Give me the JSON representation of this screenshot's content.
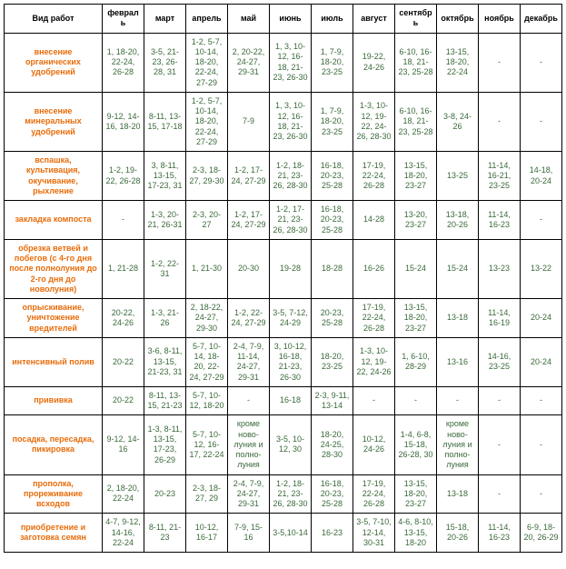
{
  "headers": {
    "work": "Вид работ",
    "months": [
      "февраль",
      "март",
      "апрель",
      "май",
      "июнь",
      "июль",
      "август",
      "сентябрь",
      "октябрь",
      "ноябрь",
      "декабрь"
    ]
  },
  "rows": [
    {
      "label": "внесение органических удобрений",
      "cells": [
        "1, 18-20, 22-24, 26-28",
        "3-5, 21-23, 26-28, 31",
        "1-2, 5-7, 10-14, 18-20, 22-24, 27-29",
        "2, 20-22, 24-27, 29-31",
        "1, 3, 10-12, 16-18, 21-23, 26-30",
        "1, 7-9, 18-20, 23-25",
        "19-22, 24-26",
        "6-10, 16-18, 21-23, 25-28",
        "13-15, 18-20, 22-24",
        "-",
        "-"
      ]
    },
    {
      "label": "внесение минеральных удобрений",
      "cells": [
        "9-12, 14-16, 18-20",
        "8-11, 13-15, 17-18",
        "1-2, 5-7, 10-14, 18-20, 22-24, 27-29",
        "7-9",
        "1, 3, 10-12, 16-18, 21-23, 26-30",
        "1, 7-9, 18-20, 23-25",
        "1-3, 10-12, 19-22, 24-26, 28-30",
        "6-10, 16-18, 21-23, 25-28",
        "3-8, 24-26",
        "-",
        "-"
      ]
    },
    {
      "label": "вспашка, культивация, окучивание, рыхление",
      "cells": [
        "1-2, 19-22, 26-28",
        "3, 8-11, 13-15, 17-23, 31",
        "2-3, 18-27, 29-30",
        "1-2, 17-24, 27-29",
        "1-2, 18-21, 23-26, 28-30",
        "16-18, 20-23, 25-28",
        "17-19, 22-24, 26-28",
        "13-15, 18-20, 23-27",
        "13-25",
        "11-14, 16-21, 23-25",
        "14-18, 20-24"
      ]
    },
    {
      "label": "закладка компоста",
      "cells": [
        "-",
        "1-3, 20-21, 26-31",
        "2-3, 20-27",
        "1-2, 17-24, 27-29",
        "1-2, 17-21, 23-26, 28-30",
        "16-18, 20-23, 25-28",
        "14-28",
        "13-20, 23-27",
        "13-18, 20-26",
        "11-14, 16-23",
        "-"
      ]
    },
    {
      "label": "обрезка ветвей и побегов (с 4-го дня после полнолуния до 2-го дня до новолуния)",
      "cells": [
        "1, 21-28",
        "1-2, 22-31",
        "1, 21-30",
        "20-30",
        "19-28",
        "18-28",
        "16-26",
        "15-24",
        "15-24",
        "13-23",
        "13-22"
      ]
    },
    {
      "label": "опрыскивание, уничтожение вредителей",
      "cells": [
        "20-22, 24-26",
        "1-3, 21-26",
        "2, 18-22, 24-27, 29-30",
        "1-2, 22-24, 27-29",
        "3-5, 7-12, 24-29",
        "20-23, 25-28",
        "17-19, 22-24, 26-28",
        "13-15, 18-20, 23-27",
        "13-18",
        "11-14, 16-19",
        "20-24"
      ]
    },
    {
      "label": "интенсивный полив",
      "cells": [
        "20-22",
        "3-6, 8-11, 13-15, 21-23, 31",
        "5-7, 10-14, 18-20, 22-24, 27-29",
        "2-4, 7-9, 11-14, 24-27, 29-31",
        "3, 10-12, 16-18, 21-23, 26-30",
        "18-20, 23-25",
        "1-3, 10-12, 19-22, 24-26",
        "1, 6-10, 28-29",
        "13-16",
        "14-16, 23-25",
        "20-24"
      ]
    },
    {
      "label": "прививка",
      "cells": [
        "20-22",
        "8-11, 13-15, 21-23",
        "5-7, 10-12, 18-20",
        "-",
        "16-18",
        "2-3, 9-11, 13-14",
        "-",
        "-",
        "-",
        "-",
        "-"
      ]
    },
    {
      "label": "посадка, пересадка, пикировка",
      "cells": [
        "9-12, 14-16",
        "1-3, 8-11, 13-15, 17-23, 26-29",
        "5-7, 10-12, 16-17, 22-24",
        "кроме ново-луния и полно-луния",
        "3-5, 10-12, 30",
        "18-20, 24-25, 28-30",
        "10-12, 24-26",
        "1-4, 6-8, 15-18, 26-28, 30",
        "кроме ново-луния и полно-луния",
        "-",
        "-"
      ]
    },
    {
      "label": "прополка, прореживание всходов",
      "cells": [
        "2, 18-20, 22-24",
        "20-23",
        "2-3, 18-27, 29",
        "2-4, 7-9, 24-27, 29-31",
        "1-2, 18-21, 23-26, 28-30",
        "16-18, 20-23, 25-28",
        "17-19, 22-24, 26-28",
        "13-15, 18-20, 23-27",
        "13-18",
        "-",
        "-"
      ]
    },
    {
      "label": "приобретение и заготовка семян",
      "cells": [
        "4-7, 9-12, 14-16, 22-24",
        "8-11, 21-23",
        "10-12, 16-17",
        "7-9, 15-16",
        "3-5,10-14",
        "16-23",
        "3-5, 7-10, 12-14, 30-31",
        "4-6, 8-10, 13-15, 18-20",
        "15-18, 20-26",
        "11-14, 16-23",
        "6-9, 18-20, 26-29"
      ]
    }
  ],
  "colors": {
    "label": "#e86c0a",
    "cell": "#3a6a3a"
  }
}
